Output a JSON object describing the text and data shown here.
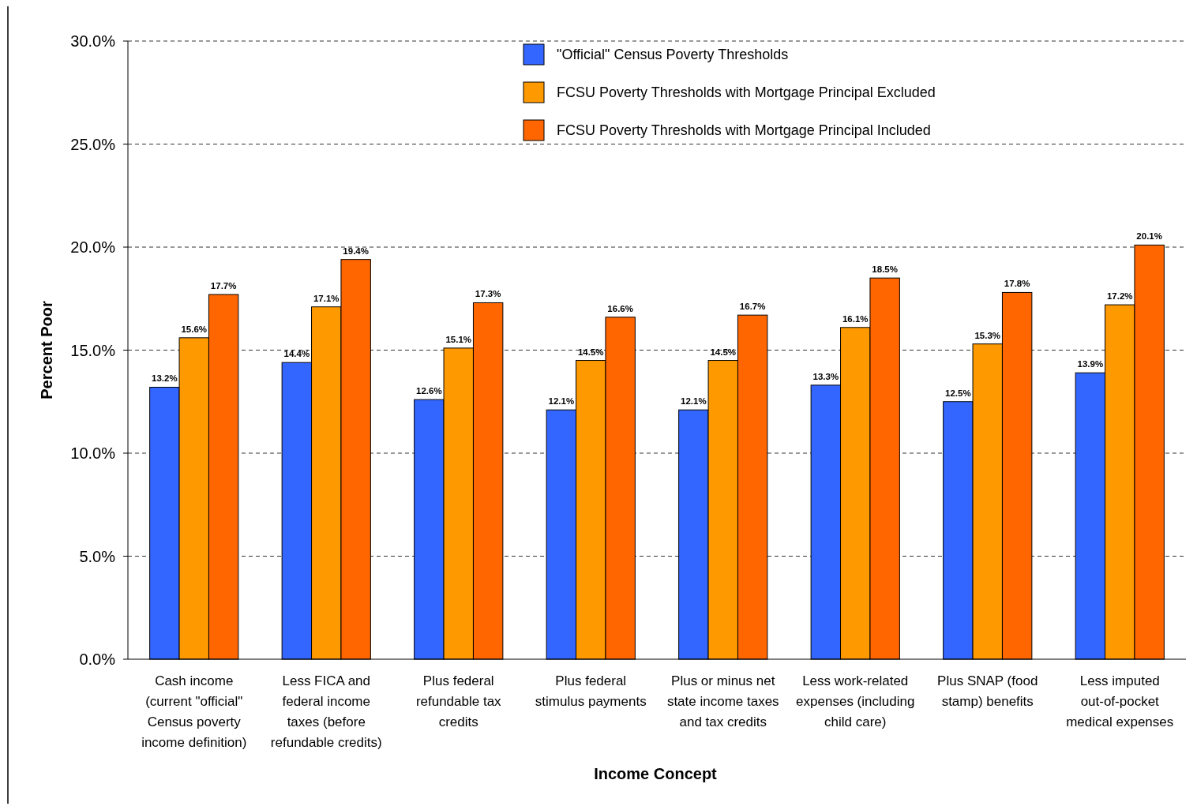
{
  "chart_data": {
    "type": "bar",
    "xlabel": "Income Concept",
    "ylabel": "Percent Poor",
    "categories": [
      "Cash income (current \"official\" Census poverty income definition)",
      "Less FICA and federal income taxes (before refundable credits)",
      "Plus federal refundable tax credits",
      "Plus federal stimulus payments",
      "Plus or minus net state income taxes and tax credits",
      "Less work-related expenses (including child care)",
      "Plus SNAP (food stamp) benefits",
      "Less imputed out-of-pocket medical expenses"
    ],
    "series": [
      {
        "name": "\"Official\" Census Poverty Thresholds",
        "color": "#3366ff",
        "values": [
          13.2,
          14.4,
          12.6,
          12.1,
          12.1,
          13.3,
          12.5,
          13.9
        ],
        "value_labels": [
          "13.2%",
          "14.4%",
          "12.6%",
          "12.1%",
          "12.1%",
          "13.3%",
          "12.5%",
          "13.9%"
        ]
      },
      {
        "name": "FCSU Poverty Thresholds with Mortgage Principal Excluded",
        "color": "#ff9900",
        "values": [
          15.6,
          17.1,
          15.1,
          14.5,
          14.5,
          16.1,
          15.3,
          17.2
        ],
        "value_labels": [
          "15.6%",
          "17.1%",
          "15.1%",
          "14.5%",
          "14.5%",
          "16.1%",
          "15.3%",
          "17.2%"
        ]
      },
      {
        "name": "FCSU Poverty Thresholds with Mortgage Principal Included",
        "color": "#ff6600",
        "values": [
          17.7,
          19.4,
          17.3,
          16.6,
          16.7,
          18.5,
          17.8,
          20.1
        ],
        "value_labels": [
          "17.7%",
          "19.4%",
          "17.3%",
          "16.6%",
          "16.7%",
          "18.5%",
          "17.8%",
          "20.1%"
        ]
      }
    ],
    "ylim": [
      0,
      30
    ],
    "yticks": [
      {
        "value": 0,
        "label": "0.0%"
      },
      {
        "value": 5,
        "label": "5.0%"
      },
      {
        "value": 10,
        "label": "10.0%"
      },
      {
        "value": 15,
        "label": "15.0%"
      },
      {
        "value": 20,
        "label": "20.0%"
      },
      {
        "value": 25,
        "label": "25.0%"
      },
      {
        "value": 30,
        "label": "30.0%"
      }
    ],
    "grid": "y",
    "legend": "top"
  }
}
